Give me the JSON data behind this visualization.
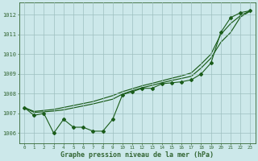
{
  "x": [
    0,
    1,
    2,
    3,
    4,
    5,
    6,
    7,
    8,
    9,
    10,
    11,
    12,
    13,
    14,
    15,
    16,
    17,
    18,
    19,
    20,
    21,
    22,
    23
  ],
  "zigzag": [
    1007.3,
    1006.9,
    1007.0,
    1006.0,
    1006.7,
    1006.3,
    1006.3,
    1006.1,
    1006.1,
    1006.7,
    1007.95,
    1008.1,
    1008.27,
    1008.27,
    1008.5,
    1008.55,
    1008.6,
    1008.7,
    1009.0,
    1009.55,
    1011.1,
    1011.85,
    1012.1,
    1012.2
  ],
  "smooth_high": [
    1007.3,
    1007.1,
    1007.15,
    1007.2,
    1007.3,
    1007.4,
    1007.5,
    1007.6,
    1007.75,
    1007.9,
    1008.1,
    1008.25,
    1008.4,
    1008.52,
    1008.65,
    1008.78,
    1008.9,
    1009.05,
    1009.5,
    1010.0,
    1011.0,
    1011.55,
    1011.95,
    1012.2
  ],
  "smooth_low": [
    1007.3,
    1007.05,
    1007.08,
    1007.12,
    1007.18,
    1007.28,
    1007.38,
    1007.48,
    1007.6,
    1007.72,
    1007.98,
    1008.15,
    1008.3,
    1008.42,
    1008.55,
    1008.67,
    1008.77,
    1008.88,
    1009.3,
    1009.8,
    1010.6,
    1011.1,
    1011.88,
    1012.18
  ],
  "ylim": [
    1005.5,
    1012.6
  ],
  "yticks": [
    1006,
    1007,
    1008,
    1009,
    1010,
    1011,
    1012
  ],
  "xticks": [
    0,
    1,
    2,
    3,
    4,
    5,
    6,
    7,
    8,
    9,
    10,
    11,
    12,
    13,
    14,
    15,
    16,
    17,
    18,
    19,
    20,
    21,
    22,
    23
  ],
  "xlabel": "Graphe pression niveau de la mer (hPa)",
  "line_color": "#1a5c1a",
  "bg_color": "#cce8ea",
  "grid_color": "#9dbfbf",
  "axis_color": "#336633",
  "figsize": [
    3.2,
    2.0
  ],
  "dpi": 100
}
